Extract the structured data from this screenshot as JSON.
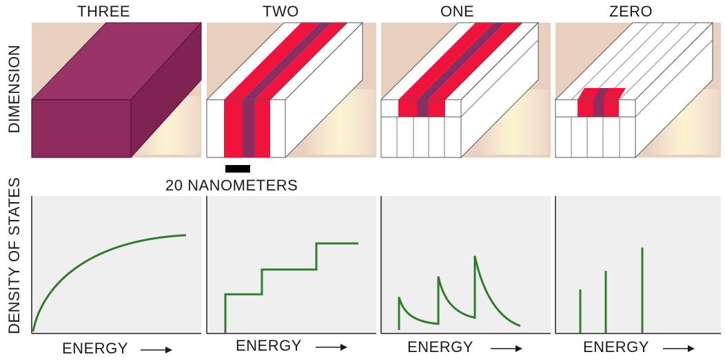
{
  "columns": [
    {
      "title": "THREE",
      "energy_label": "ENERGY"
    },
    {
      "title": "TWO",
      "energy_label": "ENERGY"
    },
    {
      "title": "ONE",
      "energy_label": "ENERGY"
    },
    {
      "title": "ZERO",
      "energy_label": "ENERGY"
    }
  ],
  "axis": {
    "row_top": "DIMENSION",
    "row_bottom": "DENSITY OF STATES"
  },
  "scale_bar": {
    "label": "20 NANOMETERS"
  },
  "colors": {
    "maroon": "#8e2a5c",
    "red": "#f0143c",
    "purple": "#8a2e62",
    "peach": "#e9cfbe",
    "yellow": "#fbf4cf",
    "panel_bg": "#efefef",
    "curve": "#2f7d2a"
  }
}
